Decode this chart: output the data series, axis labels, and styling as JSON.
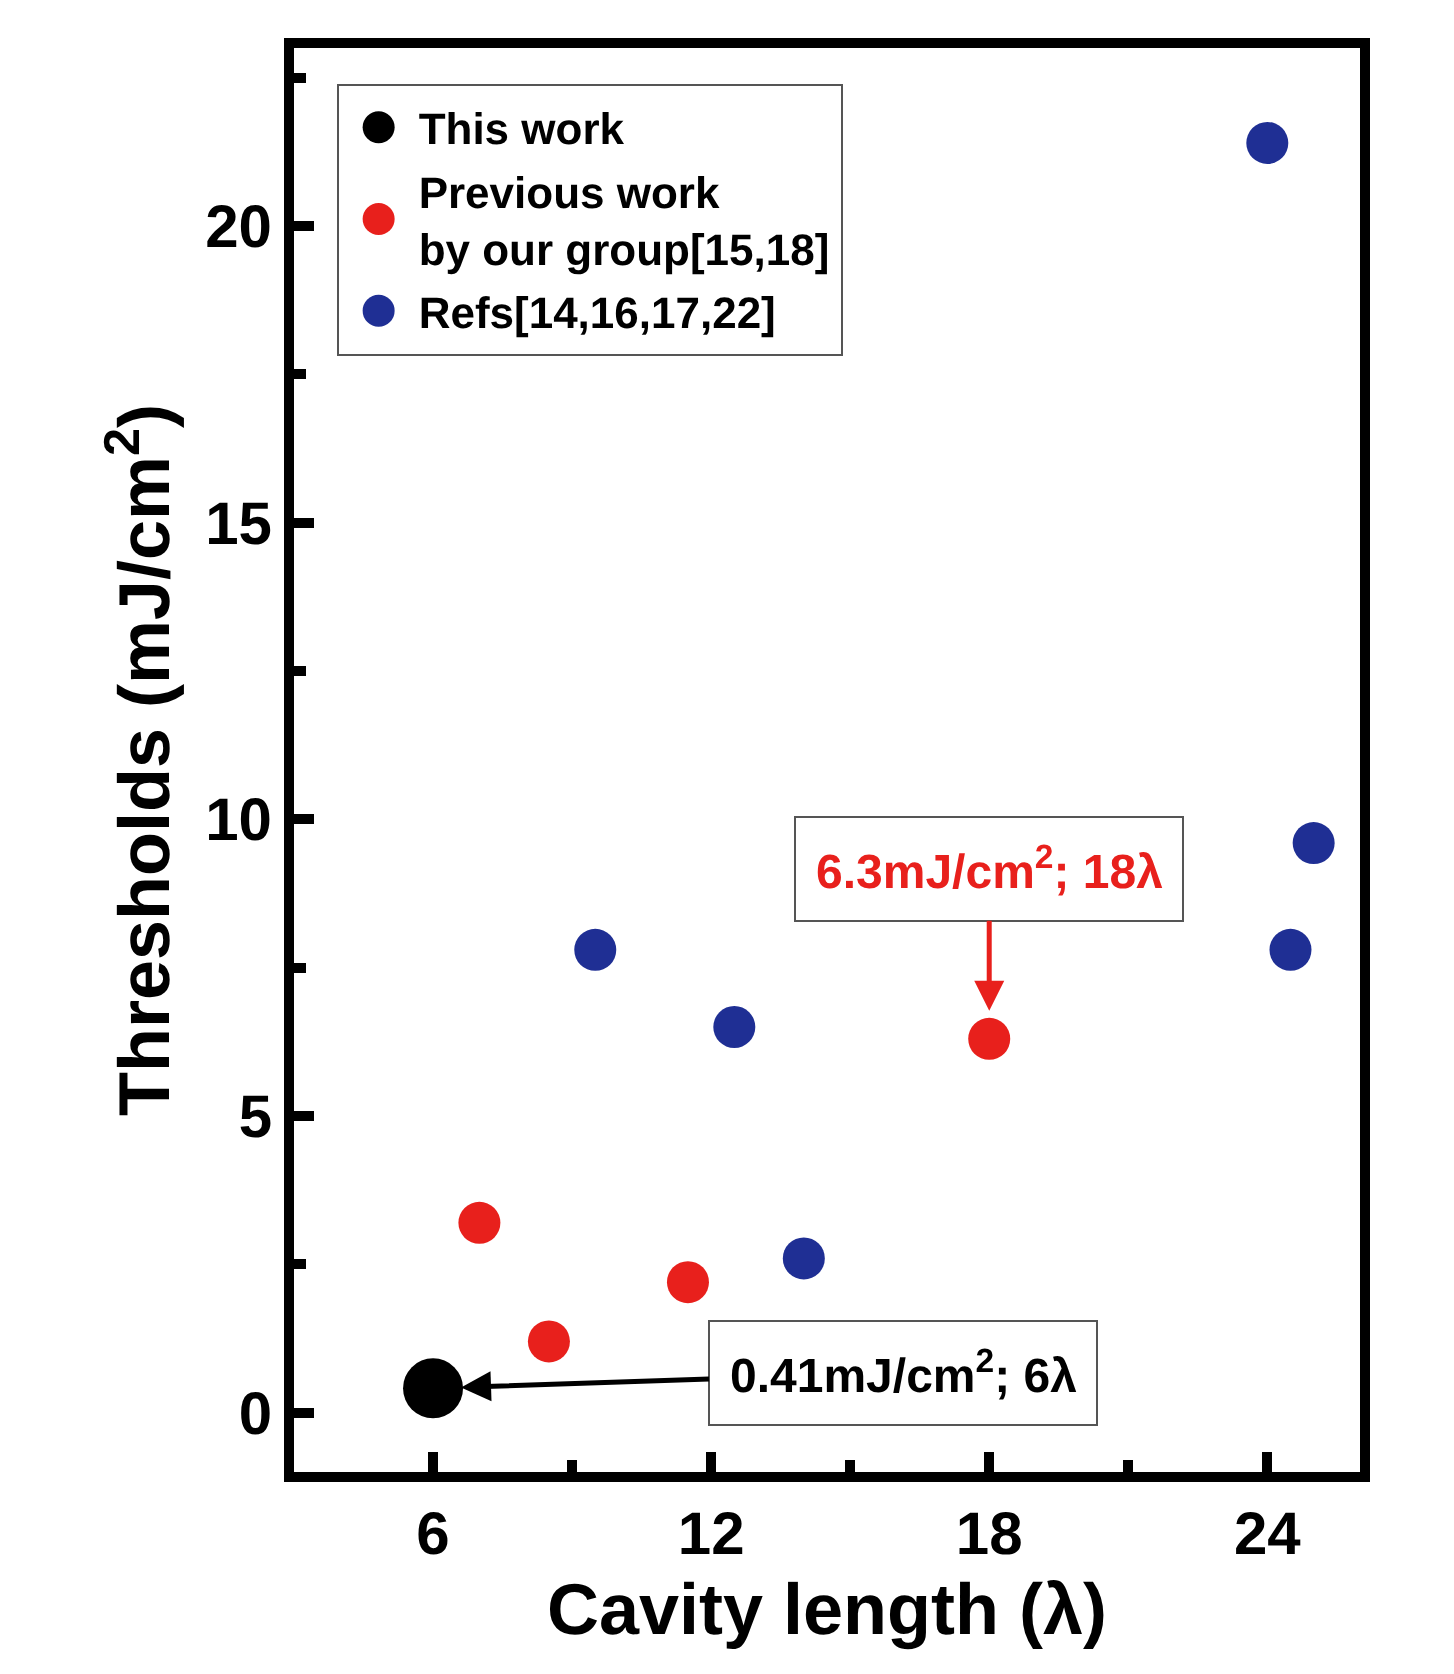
{
  "chart_data": {
    "type": "scatter",
    "xlabel": "Cavity length (λ)",
    "ylabel": "Thresholds (mJ/cm$^{2}$)",
    "series": [
      {
        "name": "This work",
        "color": "#000000",
        "x": [
          6
        ],
        "values": [
          0.41
        ]
      },
      {
        "name": "Previous work\nby our group[15,18]",
        "color": "#e8201c",
        "x": [
          7,
          8.5,
          11.5,
          18
        ],
        "values": [
          3.2,
          1.2,
          2.2,
          6.3
        ]
      },
      {
        "name": "Refs[14,16,17,22]",
        "color": "#1f2f94",
        "x": [
          9.5,
          12.5,
          14,
          24.5,
          25,
          24
        ],
        "values": [
          7.8,
          6.5,
          2.6,
          7.8,
          9.6,
          21.4
        ]
      }
    ],
    "annotations": [
      {
        "text": "6.3mJ/cm$^{2}$; 18λ",
        "x": 18,
        "y": 6.3
      },
      {
        "text": "0.41mJ/cm$^{2}$; 6λ",
        "x": 6,
        "y": 0.41
      }
    ],
    "xlim": [
      3,
      26
    ],
    "xticks": [
      6,
      {
        "value": 9,
        "label": null
      },
      12,
      {
        "value": 15,
        "label": null
      },
      18,
      {
        "value": 21,
        "label": null
      },
      24
    ],
    "ylim": [
      -1,
      23
    ],
    "yticks": [
      0,
      {
        "value": 2.5,
        "label": null
      },
      5,
      {
        "value": 7.5,
        "label": null
      },
      10,
      {
        "value": 12.5,
        "label": null
      },
      15,
      {
        "value": 17.5,
        "label": null
      },
      20,
      {
        "value": 22.5,
        "label": null
      }
    ],
    "legend": "top left",
    "marker": "circle"
  }
}
